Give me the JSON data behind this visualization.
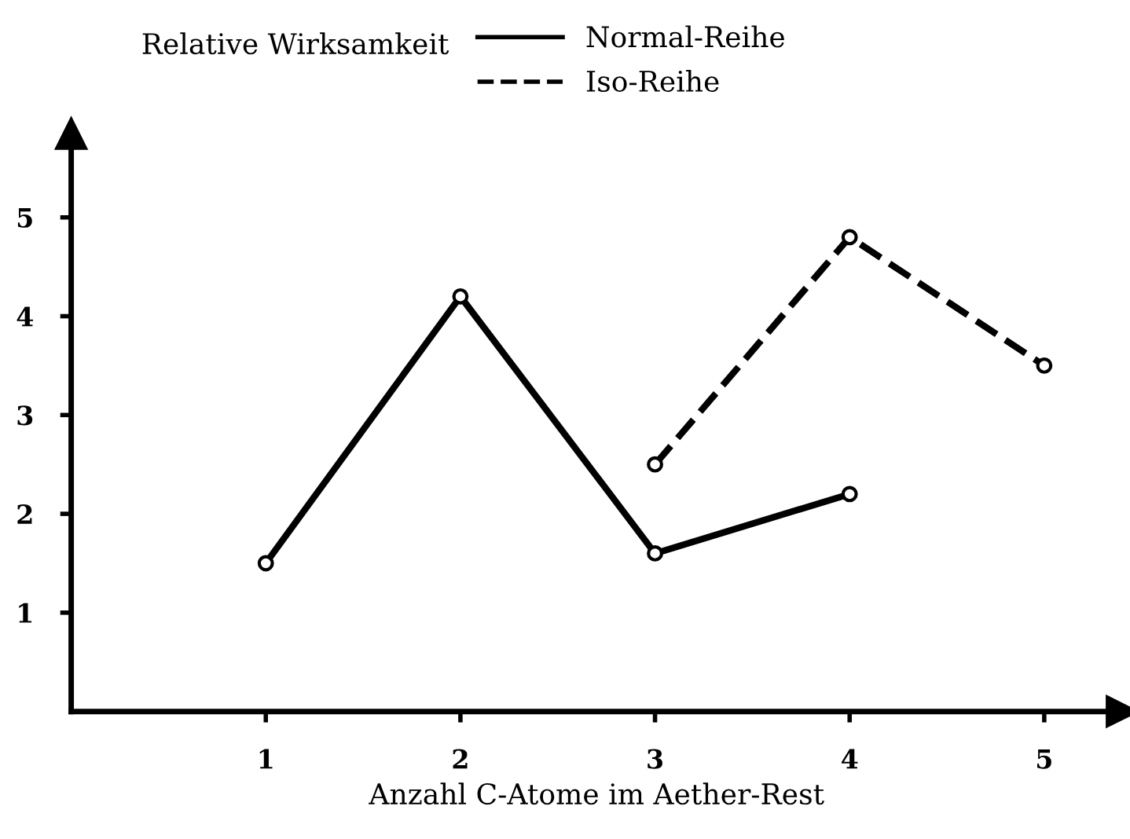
{
  "chart_data": {
    "type": "line",
    "title": "Relative Wirksamkeit",
    "xlabel": "Anzahl C-Atome im Aether-Rest",
    "series": [
      {
        "name": "Normal-Reihe",
        "color": "#000000",
        "line_style": "solid",
        "x": [
          1,
          2,
          3,
          4
        ],
        "values": [
          1.5,
          4.2,
          1.6,
          2.2
        ]
      },
      {
        "name": "Iso-Reihe",
        "color": "#000000",
        "line_style": "dashed",
        "x": [
          3,
          4,
          5
        ],
        "values": [
          2.5,
          4.8,
          3.5
        ]
      }
    ],
    "xlim": [
      0,
      5.4
    ],
    "ylim": [
      0,
      5.85
    ],
    "xticks": [
      1,
      2,
      3,
      4,
      5
    ],
    "yticks": [
      1,
      2,
      3,
      4,
      5
    ],
    "marker": "circle",
    "grid": false,
    "legend": "top"
  }
}
